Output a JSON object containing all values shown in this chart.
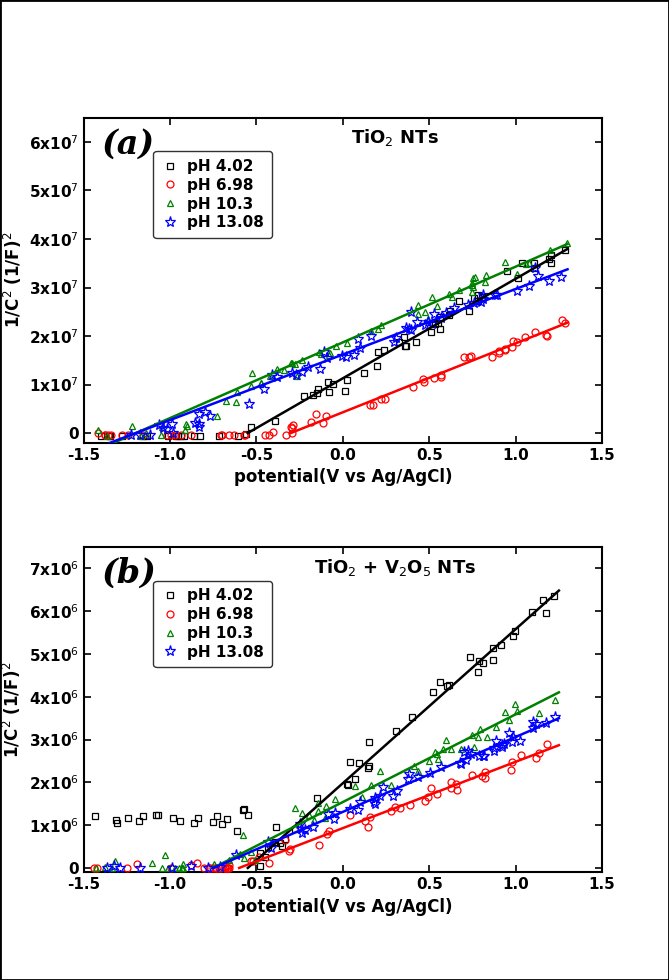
{
  "panel_a": {
    "title": "TiO$_2$ NTs",
    "label": "(a)",
    "ylabel": "1/C$^2$ (1/F)$^2$",
    "xlabel": "potential(V vs Ag/AgCl)",
    "xlim": [
      -1.5,
      1.5
    ],
    "ylim": [
      -2000000.0,
      65000000.0
    ],
    "yticks": [
      0,
      10000000.0,
      20000000.0,
      30000000.0,
      40000000.0,
      50000000.0,
      60000000.0
    ],
    "ytick_labels": [
      "0",
      "1x10$^7$",
      "2x10$^7$",
      "3x10$^7$",
      "4x10$^7$",
      "5x10$^7$",
      "6x10$^7$"
    ],
    "series": [
      {
        "label": "pH 4.02",
        "color": "black",
        "marker": "s",
        "marker_size": 5,
        "line_x0": -0.55,
        "line_x1": 1.3,
        "line_slope": 20500000.0,
        "line_intercept": 11300000.0,
        "scatter_x_start": -1.42,
        "scatter_x_end": 1.3,
        "data_slope": 20500000.0,
        "data_intercept": 11300000.0,
        "flat_below": -0.5,
        "flat_val": 1500000.0,
        "noise": 1200000.0
      },
      {
        "label": "pH 6.98",
        "color": "red",
        "marker": "o",
        "marker_size": 5,
        "line_x0": -0.3,
        "line_x1": 1.3,
        "line_slope": 14200000.0,
        "line_intercept": 4300000.0,
        "scatter_x_start": -1.42,
        "scatter_x_end": 1.3,
        "data_slope": 14200000.0,
        "data_intercept": 4300000.0,
        "flat_below": -0.3,
        "flat_val": 300000.0,
        "noise": 800000.0
      },
      {
        "label": "pH 10.3",
        "color": "green",
        "marker": "^",
        "marker_size": 5,
        "line_x0": -1.35,
        "line_x1": 1.3,
        "line_slope": 15600000.0,
        "line_intercept": 18700000.0,
        "scatter_x_start": -1.42,
        "scatter_x_end": 1.3,
        "data_slope": 15600000.0,
        "data_intercept": 18700000.0,
        "flat_below": -1.5,
        "flat_val": 0,
        "noise": 1100000.0
      },
      {
        "label": "pH 13.08",
        "color": "blue",
        "marker": "*",
        "marker_size": 6,
        "line_x0": -1.35,
        "line_x1": 1.3,
        "line_slope": 13500000.0,
        "line_intercept": 16200000.0,
        "scatter_x_start": -1.42,
        "scatter_x_end": 1.3,
        "data_slope": 13500000.0,
        "data_intercept": 16200000.0,
        "flat_below": -1.5,
        "flat_val": 0,
        "noise": 900000.0
      }
    ]
  },
  "panel_b": {
    "title": "TiO$_2$ + V$_2$O$_5$ NTs",
    "label": "(b)",
    "ylabel": "1/C$^2$ (1/F)$^2$",
    "xlabel": "potential(V vs Ag/AgCl)",
    "xlim": [
      -1.5,
      1.5
    ],
    "ylim": [
      -100000.0,
      7500000.0
    ],
    "yticks": [
      0,
      1000000.0,
      2000000.0,
      3000000.0,
      4000000.0,
      5000000.0,
      6000000.0,
      7000000.0
    ],
    "ytick_labels": [
      "0",
      "1x10$^6$",
      "2x10$^6$",
      "3x10$^6$",
      "4x10$^6$",
      "5x10$^6$",
      "6x10$^6$",
      "7x10$^6$"
    ],
    "series": [
      {
        "label": "pH 4.02",
        "color": "black",
        "marker": "s",
        "marker_size": 5,
        "line_x0": -0.55,
        "line_x1": 1.25,
        "line_slope": 3600000.0,
        "line_intercept": 1980000.0,
        "scatter_x_start": -1.45,
        "scatter_x_end": 1.25,
        "data_slope": 3600000.0,
        "data_intercept": 1980000.0,
        "plateau_below": -0.5,
        "plateau_val": 1150000.0,
        "noise": 180000.0
      },
      {
        "label": "pH 6.98",
        "color": "red",
        "marker": "o",
        "marker_size": 5,
        "line_x0": -0.6,
        "line_x1": 1.25,
        "line_slope": 1550000.0,
        "line_intercept": 930000.0,
        "scatter_x_start": -1.45,
        "scatter_x_end": 1.25,
        "data_slope": 1550000.0,
        "data_intercept": 930000.0,
        "plateau_below": -1.5,
        "plateau_val": 0,
        "noise": 120000.0
      },
      {
        "label": "pH 10.3",
        "color": "green",
        "marker": "^",
        "marker_size": 5,
        "line_x0": -0.75,
        "line_x1": 1.25,
        "line_slope": 2050000.0,
        "line_intercept": 1540000.0,
        "scatter_x_start": -1.45,
        "scatter_x_end": 1.25,
        "data_slope": 2050000.0,
        "data_intercept": 1540000.0,
        "plateau_below": -1.5,
        "plateau_val": 0,
        "noise": 160000.0
      },
      {
        "label": "pH 13.08",
        "color": "blue",
        "marker": "*",
        "marker_size": 6,
        "line_x0": -0.75,
        "line_x1": 1.25,
        "line_slope": 1750000.0,
        "line_intercept": 1310000.0,
        "scatter_x_start": -1.45,
        "scatter_x_end": 1.25,
        "data_slope": 1750000.0,
        "data_intercept": 1310000.0,
        "plateau_below": -1.5,
        "plateau_val": 0,
        "noise": 100000.0
      }
    ]
  }
}
